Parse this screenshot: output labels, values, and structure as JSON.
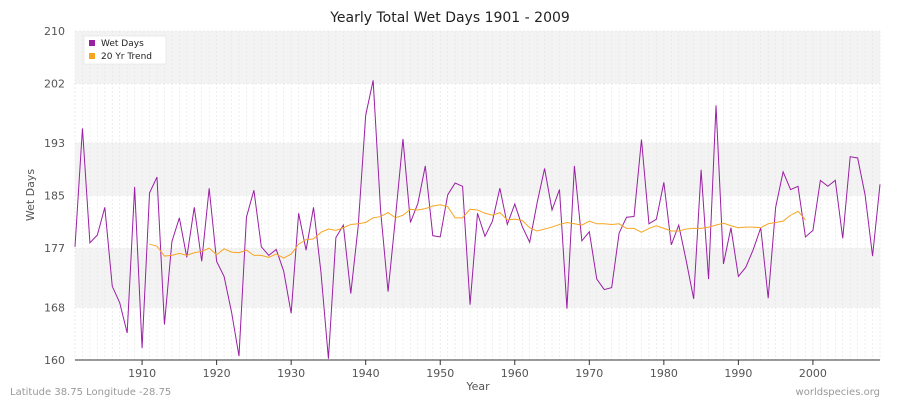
{
  "chart_data": {
    "type": "line",
    "title": "Yearly Total Wet Days 1901 - 2009",
    "xlabel": "Year",
    "ylabel": "Wet Days",
    "xlim": [
      1901,
      2009
    ],
    "ylim": [
      160,
      210
    ],
    "y_ticks": [
      160,
      168,
      177,
      185,
      193,
      202,
      210
    ],
    "x_ticks": [
      1910,
      1920,
      1930,
      1940,
      1950,
      1960,
      1970,
      1980,
      1990,
      2000
    ],
    "grid": true,
    "legend_position": "top-left",
    "series": [
      {
        "name": "Wet Days",
        "color": "#9b1fa5",
        "x": [
          1901,
          1902,
          1903,
          1904,
          1905,
          1906,
          1907,
          1908,
          1909,
          1910,
          1911,
          1912,
          1913,
          1914,
          1915,
          1916,
          1917,
          1918,
          1919,
          1920,
          1921,
          1922,
          1923,
          1924,
          1925,
          1926,
          1927,
          1928,
          1929,
          1930,
          1931,
          1932,
          1933,
          1934,
          1935,
          1936,
          1937,
          1938,
          1939,
          1940,
          1941,
          1942,
          1943,
          1944,
          1945,
          1946,
          1947,
          1948,
          1949,
          1950,
          1951,
          1952,
          1953,
          1954,
          1955,
          1956,
          1957,
          1958,
          1959,
          1960,
          1961,
          1962,
          1963,
          1964,
          1965,
          1966,
          1967,
          1968,
          1969,
          1970,
          1971,
          1972,
          1973,
          1974,
          1975,
          1976,
          1977,
          1978,
          1979,
          1980,
          1981,
          1982,
          1983,
          1984,
          1985,
          1986,
          1987,
          1988,
          1989,
          1990,
          1991,
          1992,
          1993,
          1994,
          1995,
          1996,
          1997,
          1998,
          1999,
          2000,
          2001,
          2002,
          2003,
          2004,
          2005,
          2006,
          2007,
          2008,
          2009
        ],
        "y": [
          177.2,
          195.2,
          177.8,
          179.0,
          183.2,
          171.2,
          168.7,
          164.1,
          186.3,
          161.8,
          185.4,
          187.8,
          165.4,
          178.0,
          181.6,
          175.6,
          183.2,
          175.0,
          186.1,
          175.0,
          172.7,
          167.3,
          160.6,
          181.7,
          185.8,
          177.2,
          175.9,
          176.8,
          173.5,
          167.1,
          182.3,
          176.7,
          183.2,
          173.3,
          160.2,
          178.6,
          180.5,
          170.1,
          180.4,
          197.2,
          202.5,
          182.7,
          170.4,
          181.7,
          193.6,
          180.9,
          183.8,
          189.5,
          178.9,
          178.7,
          185.1,
          186.9,
          186.4,
          168.4,
          182.3,
          178.8,
          181.1,
          186.1,
          180.6,
          183.7,
          180.3,
          177.9,
          183.9,
          189.1,
          182.8,
          185.9,
          167.8,
          189.5,
          178.1,
          179.5,
          172.3,
          170.7,
          171.0,
          179.3,
          181.7,
          181.8,
          193.5,
          180.7,
          181.4,
          187.0,
          177.5,
          180.5,
          175.1,
          169.3,
          188.9,
          172.3,
          198.7,
          174.6,
          180.1,
          172.7,
          174.1,
          176.8,
          180.1,
          169.4,
          183.2,
          188.6,
          185.9,
          186.4,
          178.7,
          179.7,
          187.3,
          186.4,
          187.3,
          178.5,
          190.9,
          190.7,
          185.1,
          175.8,
          186.7
        ]
      },
      {
        "name": "20 Yr Trend",
        "color": "#f6a623",
        "x": [
          1911,
          1912,
          1913,
          1914,
          1915,
          1916,
          1917,
          1918,
          1919,
          1920,
          1921,
          1922,
          1923,
          1924,
          1925,
          1926,
          1927,
          1928,
          1929,
          1930,
          1931,
          1932,
          1933,
          1934,
          1935,
          1936,
          1937,
          1938,
          1939,
          1940,
          1941,
          1942,
          1943,
          1944,
          1945,
          1946,
          1947,
          1948,
          1949,
          1950,
          1951,
          1952,
          1953,
          1954,
          1955,
          1956,
          1957,
          1958,
          1959,
          1960,
          1961,
          1962,
          1963,
          1964,
          1965,
          1966,
          1967,
          1968,
          1969,
          1970,
          1971,
          1972,
          1973,
          1974,
          1975,
          1976,
          1977,
          1978,
          1979,
          1980,
          1981,
          1982,
          1983,
          1984,
          1985,
          1986,
          1987,
          1988,
          1989,
          1990,
          1991,
          1992,
          1993,
          1994,
          1995,
          1996,
          1997,
          1998,
          1999
        ],
        "y": [
          177.6,
          177.3,
          175.8,
          175.9,
          176.2,
          175.9,
          176.3,
          176.5,
          177.0,
          176.0,
          176.9,
          176.4,
          176.3,
          176.7,
          175.9,
          175.9,
          175.6,
          176.1,
          175.5,
          176.1,
          177.6,
          178.3,
          178.4,
          179.4,
          179.9,
          179.7,
          180.1,
          180.6,
          180.7,
          180.9,
          181.6,
          181.8,
          182.4,
          181.6,
          182.0,
          182.9,
          182.8,
          183.0,
          183.4,
          183.6,
          183.3,
          181.6,
          181.6,
          182.9,
          182.8,
          182.3,
          182.0,
          182.4,
          181.3,
          181.4,
          181.2,
          180.1,
          179.6,
          179.9,
          180.2,
          180.6,
          180.9,
          180.7,
          180.5,
          181.1,
          180.7,
          180.7,
          180.6,
          180.7,
          180.0,
          180.0,
          179.4,
          180.0,
          180.4,
          180.0,
          179.6,
          179.6,
          179.9,
          180.0,
          180.0,
          180.2,
          180.5,
          180.8,
          180.4,
          180.1,
          180.2,
          180.2,
          180.1,
          180.7,
          180.9,
          181.1,
          182.0,
          182.6,
          181.3
        ]
      }
    ]
  },
  "footer": {
    "location": "Latitude 38.75 Longitude -28.75",
    "source": "worldspecies.org"
  }
}
